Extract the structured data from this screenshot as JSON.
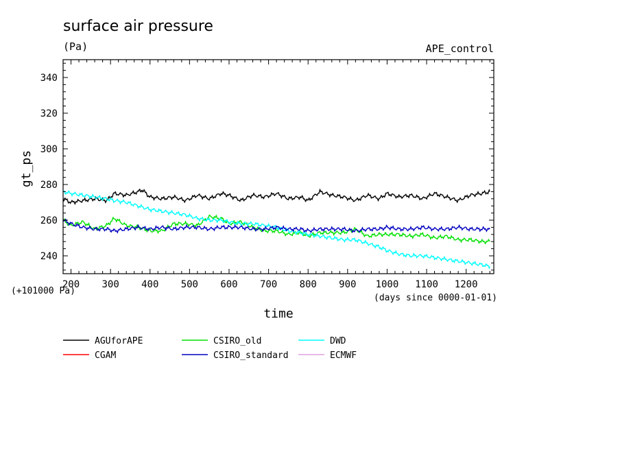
{
  "chart_data": {
    "type": "line",
    "title": "surface air pressure",
    "units": "(Pa)",
    "experiment": "APE_control",
    "xlabel": "time",
    "x_units": "(days since 0000-01-01)",
    "ylabel": "gt_ps",
    "y_offset_note": "(+101000 Pa)",
    "xlim": [
      180,
      1270
    ],
    "ylim": [
      230,
      350
    ],
    "x_ticks": [
      200,
      300,
      400,
      500,
      600,
      700,
      800,
      900,
      1000,
      1100,
      1200
    ],
    "y_ticks": [
      240,
      260,
      280,
      300,
      320,
      340
    ],
    "series": [
      {
        "name": "AGUforAPE",
        "color": "#000000",
        "x": [
          180,
          200,
          230,
          260,
          290,
          310,
          340,
          370,
          380,
          400,
          430,
          460,
          490,
          520,
          550,
          580,
          600,
          630,
          660,
          690,
          720,
          750,
          780,
          800,
          830,
          860,
          890,
          920,
          950,
          980,
          1000,
          1030,
          1060,
          1090,
          1120,
          1150,
          1180,
          1210,
          1240,
          1260
        ],
        "y": [
          272,
          270,
          271,
          272,
          271,
          275,
          274,
          276,
          277,
          273,
          272,
          273,
          271,
          274,
          272,
          275,
          274,
          271,
          274,
          273,
          275,
          272,
          273,
          271,
          276,
          274,
          273,
          271,
          274,
          272,
          275,
          273,
          274,
          272,
          275,
          273,
          271,
          274,
          275,
          276
        ]
      },
      {
        "name": "CSIRO_old",
        "color": "#00e000",
        "x": [
          180,
          200,
          230,
          260,
          290,
          310,
          340,
          370,
          400,
          430,
          460,
          490,
          520,
          550,
          580,
          600,
          630,
          660,
          690,
          720,
          750,
          780,
          800,
          830,
          860,
          890,
          920,
          950,
          980,
          1000,
          1030,
          1060,
          1090,
          1120,
          1150,
          1180,
          1210,
          1240,
          1260
        ],
        "y": [
          260,
          257,
          259,
          255,
          257,
          261,
          257,
          256,
          254,
          254,
          258,
          258,
          257,
          262,
          261,
          258,
          259,
          256,
          254,
          254,
          252,
          253,
          251,
          253,
          253,
          253,
          255,
          251,
          252,
          252,
          252,
          251,
          252,
          250,
          251,
          249,
          249,
          248,
          248
        ]
      },
      {
        "name": "DWD",
        "color": "#00ffff",
        "x": [
          180,
          200,
          230,
          260,
          290,
          310,
          340,
          370,
          400,
          430,
          460,
          490,
          520,
          550,
          580,
          600,
          630,
          660,
          690,
          720,
          750,
          780,
          800,
          830,
          860,
          890,
          920,
          950,
          980,
          1000,
          1030,
          1060,
          1090,
          1120,
          1150,
          1180,
          1210,
          1240,
          1260
        ],
        "y": [
          276,
          275,
          274,
          273,
          272,
          271,
          270,
          268,
          266,
          265,
          264,
          263,
          261,
          260,
          260,
          259,
          258,
          258,
          257,
          256,
          254,
          253,
          252,
          251,
          250,
          249,
          249,
          247,
          245,
          243,
          241,
          240,
          240,
          239,
          238,
          237,
          236,
          235,
          234
        ]
      },
      {
        "name": "CGAM",
        "color": "#ff0000",
        "x": [],
        "y": []
      },
      {
        "name": "CSIRO_standard",
        "color": "#0000c0",
        "x": [
          180,
          200,
          230,
          260,
          290,
          310,
          340,
          370,
          400,
          430,
          460,
          490,
          520,
          550,
          580,
          600,
          630,
          660,
          690,
          720,
          750,
          780,
          800,
          830,
          860,
          890,
          920,
          950,
          980,
          1000,
          1030,
          1060,
          1090,
          1120,
          1150,
          1180,
          1210,
          1240,
          1260
        ],
        "y": [
          260,
          258,
          256,
          255,
          255,
          254,
          255,
          256,
          255,
          256,
          255,
          256,
          256,
          255,
          256,
          256,
          256,
          255,
          255,
          256,
          255,
          255,
          254,
          255,
          255,
          255,
          254,
          255,
          255,
          256,
          255,
          255,
          256,
          255,
          255,
          256,
          255,
          255,
          255
        ]
      },
      {
        "name": "ECMWF",
        "color": "#e0a0e0",
        "x": [],
        "y": []
      }
    ],
    "legend_placement": "bottom",
    "grid": false
  }
}
